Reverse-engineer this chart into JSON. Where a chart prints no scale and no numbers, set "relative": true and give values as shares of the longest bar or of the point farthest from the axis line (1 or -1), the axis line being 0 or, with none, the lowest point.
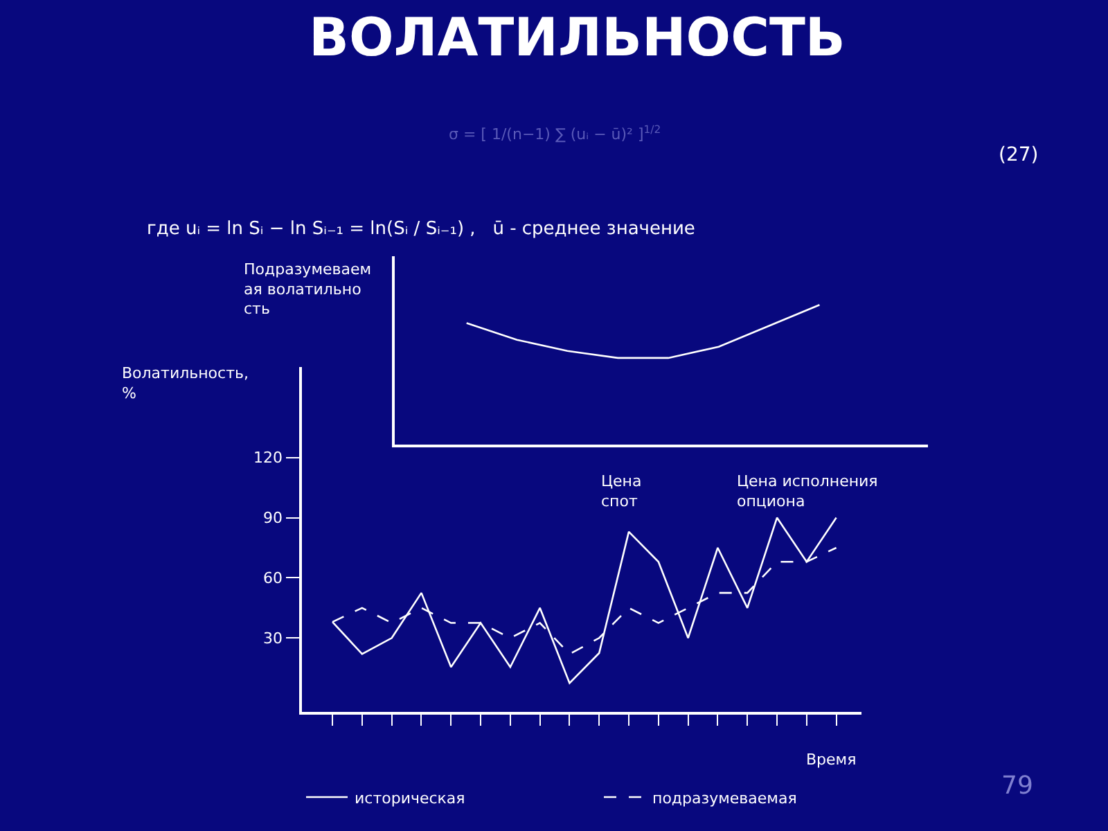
{
  "chart_data": [
    {
      "type": "line",
      "title": "ВОЛАТИЛЬНОСТЬ",
      "ylabel": "Подразумеваемая волатильность",
      "xlabel": "Цена исполнения опциона",
      "relative": true,
      "annotations": [
        "σ = [ 1/(n−1) ∑ (uᵢ − ū)² ]$^{1/2}$",
        "(27)",
        "где uᵢ = ln Sᵢ − ln Sᵢ₋₁ = ln(Sᵢ / Sᵢ₋₁) ,   ū - среднее значение",
        "Цена спот"
      ],
      "categories": [
        null,
        null,
        null,
        null,
        null,
        null,
        null,
        null
      ],
      "series": [
        {
          "color": "#ffffff",
          "values": [
            0.87,
            0.75,
            0.67,
            0.62,
            0.62,
            0.7,
            0.85,
            1
          ]
        }
      ],
      "grid": false,
      "legend": false,
      "marker": "none",
      "tick_labels": false
    },
    {
      "type": "line",
      "ylabel": "Волатильность, %",
      "xlabel": "Время",
      "annotations": [
        "79"
      ],
      "categories": [
        null,
        null,
        null,
        null,
        null,
        null,
        null,
        null,
        null,
        null,
        null,
        null,
        null,
        null,
        null,
        null,
        null,
        null
      ],
      "ylim": [
        -7,
        165
      ],
      "yticks": [
        30,
        60,
        90,
        120
      ],
      "series": [
        {
          "name": "историческая",
          "color": "#ffffff",
          "line_style": "solid",
          "values": [
            38,
            22,
            30,
            52.5,
            15.5,
            37.5,
            15.5,
            45,
            7.5,
            22.5,
            83,
            68,
            30,
            75,
            45,
            90,
            68,
            90
          ]
        },
        {
          "name": "подразумеваемая",
          "color": "#ffffff",
          "line_style": "dashed",
          "values": [
            38,
            45,
            37.5,
            45,
            37.5,
            37.5,
            30,
            37.5,
            22,
            30,
            45,
            37.5,
            45,
            52.5,
            52.5,
            68,
            68,
            75
          ]
        }
      ],
      "grid": false,
      "legend": "bottom",
      "marker": "none",
      "tick_labels": "y"
    }
  ]
}
